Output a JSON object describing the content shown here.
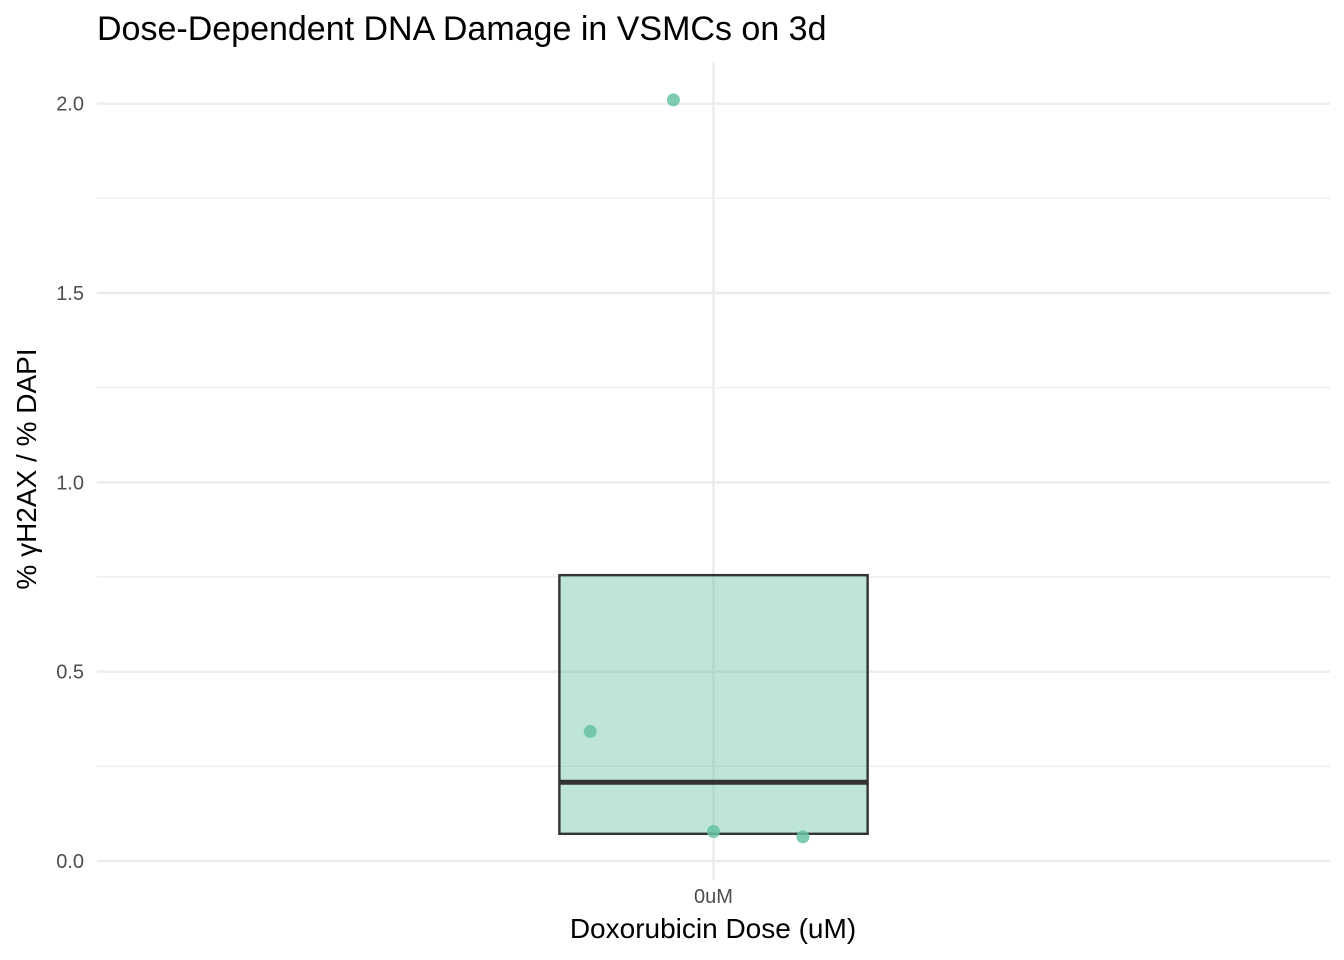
{
  "chart_data": {
    "type": "boxplot",
    "title": "Dose-Dependent DNA Damage in VSMCs on 3d",
    "xlabel": "Doxorubicin Dose (uM)",
    "ylabel": "% γH2AX / % DAPI",
    "categories": [
      "0uM"
    ],
    "ylim": [
      -0.05,
      2.11
    ],
    "yticks": [
      0.0,
      0.5,
      1.0,
      1.5,
      2.0
    ],
    "ytick_labels": [
      "0.0",
      "0.5",
      "1.0",
      "1.5",
      "2.0"
    ],
    "grid": true,
    "legend": "none",
    "colors": {
      "box_fill": "#66c2a5",
      "box_outline": "#333333",
      "points": "#66c2a5",
      "grid": "#ebebeb"
    },
    "boxes": [
      {
        "category": "0uM",
        "q1": 0.072,
        "median": 0.208,
        "q3": 0.755
      }
    ],
    "points": [
      {
        "category": "0uM",
        "jitter": -0.13,
        "y": 2.01
      },
      {
        "category": "0uM",
        "jitter": -0.4,
        "y": 0.342
      },
      {
        "category": "0uM",
        "jitter": 0.0,
        "y": 0.078
      },
      {
        "category": "0uM",
        "jitter": 0.29,
        "y": 0.064
      }
    ]
  }
}
